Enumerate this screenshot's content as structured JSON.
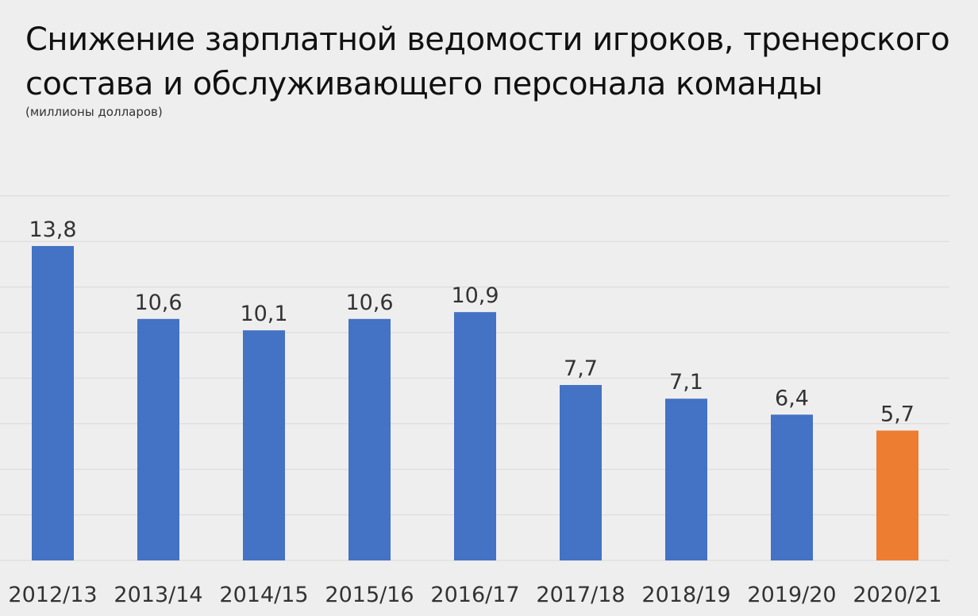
{
  "title_line1": "Снижение зарплатной ведомости игроков, тренерского",
  "title_line2": "состава и обслуживающего персонала команды",
  "subtitle": "(миллионы долларов)",
  "colors": {
    "bar": "#4472c4",
    "highlight": "#ed7d31",
    "grid": "#d9d9d9",
    "text": "#333333"
  },
  "chart_data": {
    "type": "bar",
    "categories": [
      "2012/13",
      "2013/14",
      "2014/15",
      "2015/16",
      "2016/17",
      "2017/18",
      "2018/19",
      "2019/20",
      "2020/21"
    ],
    "values": [
      13.8,
      10.6,
      10.1,
      10.6,
      10.9,
      7.7,
      7.1,
      6.4,
      5.7
    ],
    "labels": [
      "13,8",
      "10,6",
      "10,1",
      "10,6",
      "10,9",
      "7,7",
      "7,1",
      "6,4",
      "5,7"
    ],
    "highlight_index": 8,
    "ylim": [
      0,
      16
    ],
    "grid": true,
    "title": "Снижение зарплатной ведомости игроков, тренерского состава и обслуживающего персонала команды",
    "ylabel": "(миллионы долларов)",
    "xlabel": ""
  }
}
